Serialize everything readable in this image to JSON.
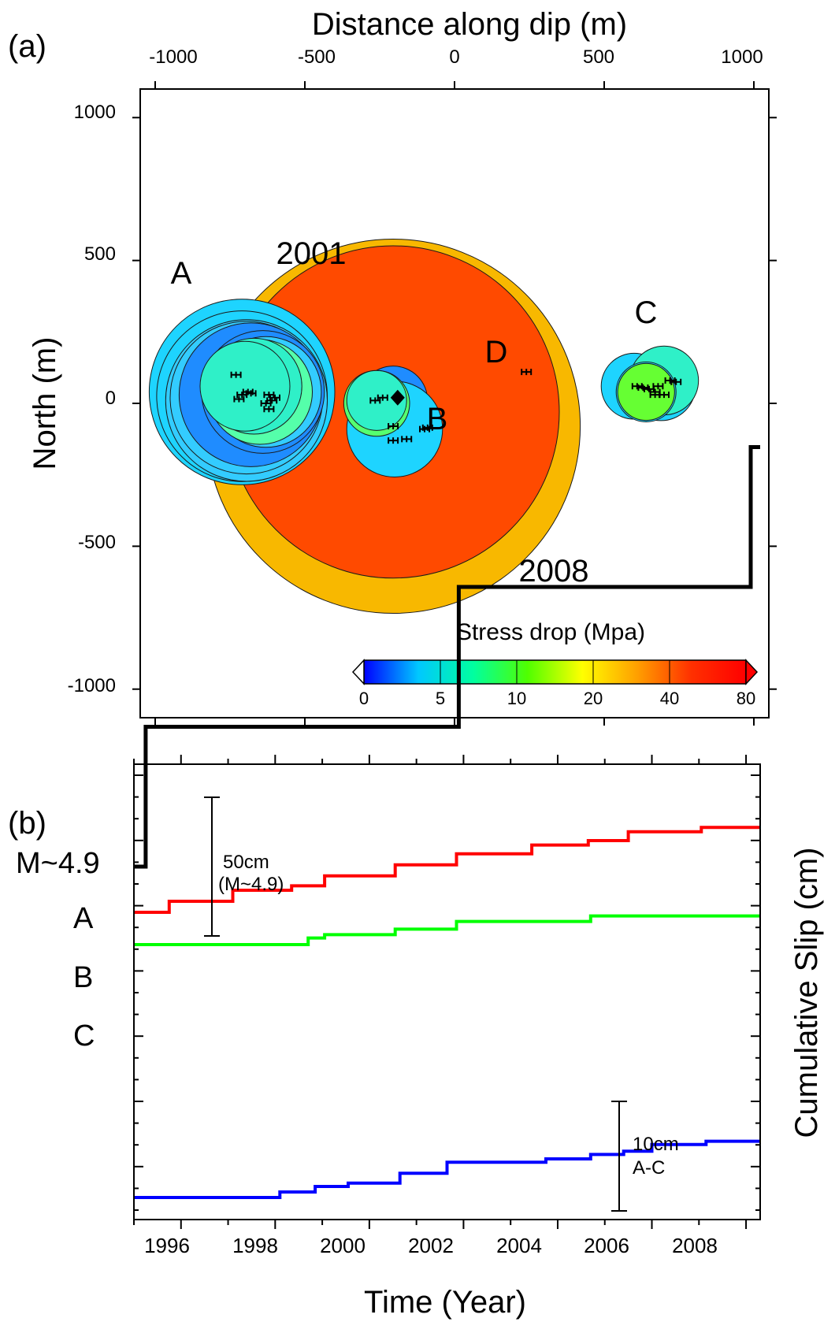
{
  "panel_a": {
    "label": "(a)",
    "title_top": "Distance along dip (m)",
    "ylabel": "North (m)",
    "xticks": [
      "-1000",
      "-500",
      "0",
      "500",
      "1000"
    ],
    "yticks": [
      "1000",
      "500",
      "0",
      "-500",
      "-1000"
    ],
    "annotations": {
      "A": "A",
      "B": "B",
      "C": "C",
      "D": "D",
      "y2001": "2001",
      "y2008": "2008"
    },
    "colorbar": {
      "title": "Stress drop (Mpa)",
      "ticks": [
        "0",
        "5",
        "10",
        "20",
        "40",
        "80"
      ],
      "colors": [
        "#0000ff",
        "#00c8ff",
        "#00ffa0",
        "#50ff00",
        "#ffff00",
        "#ffa000",
        "#ff3000",
        "#ff0000"
      ]
    }
  },
  "panel_b": {
    "label": "(b)",
    "xlabel": "Time (Year)",
    "ylabel": "Cumulative Slip (cm)",
    "xticks": [
      "1996",
      "1998",
      "2000",
      "2002",
      "2004",
      "2006",
      "2008"
    ],
    "series_labels": {
      "m49": "M~4.9",
      "A": "A",
      "B": "B",
      "C": "C"
    },
    "scalebar_50": {
      "line1": "50cm",
      "line2": "(M~4.9)"
    },
    "scalebar_10": {
      "line1": "10cm",
      "line2": "A-C"
    }
  },
  "chart_data": [
    {
      "type": "scatter",
      "title": "",
      "xlabel": "Distance along dip (m)",
      "ylabel": "North (m)",
      "xlim": [
        -1050,
        1050
      ],
      "ylim": [
        -1100,
        1100
      ],
      "colorbar_label": "Stress drop (Mpa)",
      "colorbar_ticks": [
        0,
        5,
        10,
        20,
        40,
        80
      ],
      "ruptures": [
        {
          "name": "2008",
          "x": -205,
          "y": -80,
          "r": 625,
          "color": "#f8b800"
        },
        {
          "name": "2001",
          "x": -205,
          "y": -30,
          "r": 555,
          "color": "#ff4a00"
        },
        {
          "name": "A",
          "x": -710,
          "y": 40,
          "r": 310,
          "color": "#1ed4ff"
        },
        {
          "name": "A",
          "x": -710,
          "y": 25,
          "r": 285,
          "color": "#1ed4ff"
        },
        {
          "name": "A",
          "x": -695,
          "y": 10,
          "r": 270,
          "color": "#33ccff"
        },
        {
          "name": "A",
          "x": -695,
          "y": 20,
          "r": 255,
          "color": "#33ccff"
        },
        {
          "name": "A",
          "x": -680,
          "y": 30,
          "r": 240,
          "color": "#1f8cff"
        },
        {
          "name": "A",
          "x": -640,
          "y": 40,
          "r": 205,
          "color": "#1f8cff"
        },
        {
          "name": "A",
          "x": -630,
          "y": 40,
          "r": 185,
          "color": "#33ccff"
        },
        {
          "name": "A",
          "x": -650,
          "y": 40,
          "r": 175,
          "color": "#55ffaa"
        },
        {
          "name": "A",
          "x": -670,
          "y": 60,
          "r": 160,
          "color": "#2ff0c8"
        },
        {
          "name": "A",
          "x": -700,
          "y": 60,
          "r": 150,
          "color": "#2ff0c8"
        },
        {
          "name": "B",
          "x": -205,
          "y": 10,
          "r": 115,
          "color": "#1f8cff"
        },
        {
          "name": "B",
          "x": -200,
          "y": -90,
          "r": 160,
          "color": "#1ed4ff"
        },
        {
          "name": "B",
          "x": -260,
          "y": 0,
          "r": 110,
          "color": "#55ff70"
        },
        {
          "name": "B",
          "x": -260,
          "y": 10,
          "r": 100,
          "color": "#2ff0c8"
        },
        {
          "name": "C",
          "x": 600,
          "y": 60,
          "r": 110,
          "color": "#1ed4ff"
        },
        {
          "name": "C",
          "x": 690,
          "y": 60,
          "r": 115,
          "color": "#1ed4ff"
        },
        {
          "name": "C",
          "x": 700,
          "y": 80,
          "r": 115,
          "color": "#2ff0c8"
        },
        {
          "name": "C",
          "x": 640,
          "y": 40,
          "r": 100,
          "color": "#1ed4ff"
        },
        {
          "name": "C",
          "x": 640,
          "y": 40,
          "r": 95,
          "color": "#66ff33"
        }
      ],
      "hypocenters": [
        [
          -730,
          100
        ],
        [
          -690,
          40
        ],
        [
          -710,
          30
        ],
        [
          -680,
          35
        ],
        [
          -720,
          15
        ],
        [
          -620,
          30
        ],
        [
          -610,
          10
        ],
        [
          -600,
          20
        ],
        [
          -620,
          -20
        ],
        [
          -630,
          0
        ],
        [
          -265,
          10
        ],
        [
          -240,
          20
        ],
        [
          -205,
          -80
        ],
        [
          -205,
          -130
        ],
        [
          -160,
          -125
        ],
        [
          -100,
          -90
        ],
        [
          -90,
          -85
        ],
        [
          610,
          60
        ],
        [
          630,
          55
        ],
        [
          650,
          50
        ],
        [
          670,
          40
        ],
        [
          680,
          60
        ],
        [
          720,
          80
        ],
        [
          740,
          75
        ],
        [
          700,
          30
        ],
        [
          670,
          30
        ],
        [
          240,
          110
        ]
      ],
      "mainshock": [
        -190,
        20
      ]
    },
    {
      "type": "line",
      "title": "",
      "xlabel": "Time (Year)",
      "ylabel": "Cumulative Slip (cm)",
      "xlim": [
        1995.0,
        2008.3
      ],
      "series": [
        {
          "name": "M~4.9",
          "color": "#000000",
          "x": [
            1995.0,
            1995.25,
            1995.25,
            2001.9,
            2001.9,
            2008.1,
            2008.1,
            2008.3
          ],
          "y": [
            0,
            0,
            50,
            50,
            100,
            100,
            150,
            150
          ]
        },
        {
          "name": "A",
          "color": "#ff0000",
          "x": [
            1995.0,
            1995.75,
            1995.75,
            1997.1,
            1997.1,
            1998.35,
            1998.35,
            1999.05,
            1999.05,
            2000.55,
            2000.55,
            2001.85,
            2001.85,
            2003.45,
            2003.45,
            2004.65,
            2004.65,
            2005.5,
            2005.5,
            2007.05,
            2007.05,
            2008.3
          ],
          "y": [
            0,
            0,
            1,
            1,
            2,
            2,
            2.4,
            2.4,
            3.3,
            3.3,
            4.3,
            4.3,
            5.3,
            5.3,
            6.1,
            6.1,
            6.5,
            6.5,
            7.3,
            7.3,
            7.7,
            7.7
          ]
        },
        {
          "name": "B",
          "color": "#00ff00",
          "x": [
            1995.0,
            1998.7,
            1998.7,
            1999.05,
            1999.05,
            2000.55,
            2000.55,
            2001.85,
            2001.85,
            2004.7,
            2004.7,
            2008.3
          ],
          "y": [
            0,
            0,
            0.6,
            0.6,
            0.9,
            0.9,
            1.4,
            1.4,
            2.1,
            2.1,
            2.6,
            2.6
          ]
        },
        {
          "name": "C",
          "color": "#0000ff",
          "x": [
            1995.0,
            1998.1,
            1998.1,
            1998.85,
            1998.85,
            1999.55,
            1999.55,
            2000.65,
            2000.65,
            2001.65,
            2001.65,
            2003.75,
            2003.75,
            2004.7,
            2004.7,
            2005.4,
            2005.4,
            2006.0,
            2006.0,
            2007.15,
            2007.15,
            2008.3
          ],
          "y": [
            0,
            0,
            0.5,
            0.5,
            1.0,
            1.0,
            1.3,
            1.3,
            2.2,
            2.2,
            3.2,
            3.2,
            3.5,
            3.5,
            3.9,
            3.9,
            4.2,
            4.2,
            4.8,
            4.8,
            5.1,
            5.1
          ]
        }
      ]
    }
  ]
}
